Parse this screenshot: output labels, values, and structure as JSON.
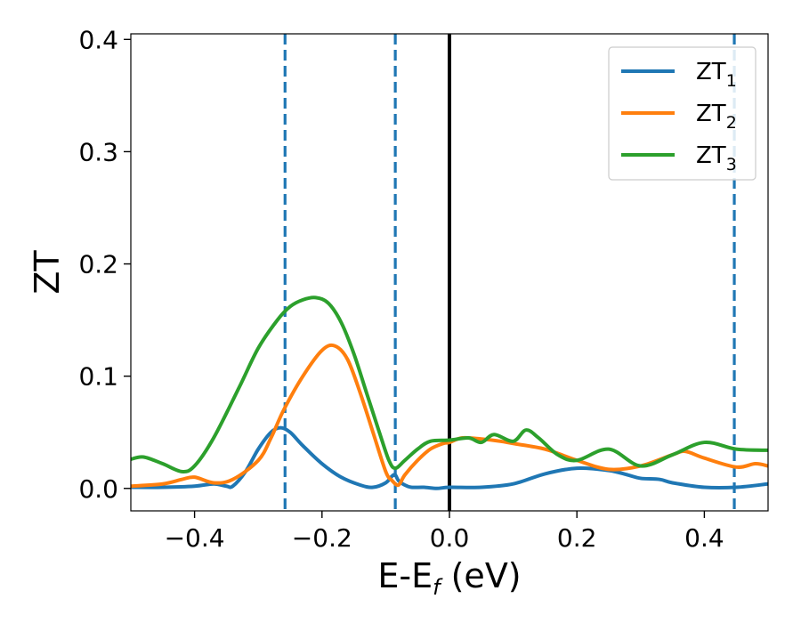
{
  "chart_data": {
    "type": "line",
    "xlabel": {
      "main": "E-E",
      "sub": "f",
      "suffix": " (eV)"
    },
    "ylabel": "ZT",
    "xlim": [
      -0.5,
      0.5
    ],
    "ylim": [
      -0.02,
      0.405
    ],
    "grid": false,
    "legend_position": "top-right",
    "x_ticks": [
      -0.4,
      -0.2,
      0.0,
      0.2,
      0.4
    ],
    "x_tick_labels": [
      "−0.4",
      "−0.2",
      "0.0",
      "0.2",
      "0.4"
    ],
    "y_ticks": [
      0.0,
      0.1,
      0.2,
      0.3,
      0.4
    ],
    "y_tick_labels": [
      "0.0",
      "0.1",
      "0.2",
      "0.3",
      "0.4"
    ],
    "vertical_lines": [
      {
        "x": -0.258,
        "style": "dashed",
        "color": "#1f77b4"
      },
      {
        "x": -0.085,
        "style": "dashed",
        "color": "#1f77b4"
      },
      {
        "x": 0.0,
        "style": "solid",
        "color": "#000000"
      },
      {
        "x": 0.447,
        "style": "dashed",
        "color": "#1f77b4"
      }
    ],
    "series": [
      {
        "name": "ZT",
        "sub": "1",
        "color": "#1f77b4",
        "x": [
          -0.5,
          -0.45,
          -0.4,
          -0.37,
          -0.35,
          -0.34,
          -0.32,
          -0.3,
          -0.28,
          -0.265,
          -0.25,
          -0.23,
          -0.2,
          -0.17,
          -0.14,
          -0.12,
          -0.1,
          -0.09,
          -0.085,
          -0.08,
          -0.07,
          -0.06,
          -0.04,
          -0.02,
          0.0,
          0.05,
          0.1,
          0.15,
          0.2,
          0.25,
          0.28,
          0.3,
          0.33,
          0.35,
          0.4,
          0.45,
          0.5
        ],
        "y": [
          0.001,
          0.001,
          0.002,
          0.004,
          0.002,
          0.002,
          0.015,
          0.035,
          0.05,
          0.054,
          0.05,
          0.038,
          0.022,
          0.01,
          0.003,
          0.001,
          0.005,
          0.011,
          0.012,
          0.007,
          0.003,
          0.001,
          0.001,
          0.0,
          0.001,
          0.001,
          0.004,
          0.013,
          0.018,
          0.016,
          0.012,
          0.009,
          0.008,
          0.005,
          0.001,
          0.001,
          0.004
        ]
      },
      {
        "name": "ZT",
        "sub": "2",
        "color": "#ff7f0e",
        "x": [
          -0.5,
          -0.45,
          -0.42,
          -0.4,
          -0.37,
          -0.34,
          -0.3,
          -0.28,
          -0.26,
          -0.23,
          -0.2,
          -0.18,
          -0.16,
          -0.14,
          -0.12,
          -0.1,
          -0.09,
          -0.08,
          -0.07,
          -0.05,
          -0.03,
          -0.01,
          0.0,
          0.02,
          0.05,
          0.08,
          0.1,
          0.15,
          0.2,
          0.25,
          0.3,
          0.35,
          0.37,
          0.4,
          0.45,
          0.48,
          0.5
        ],
        "y": [
          0.002,
          0.004,
          0.008,
          0.01,
          0.005,
          0.008,
          0.025,
          0.045,
          0.07,
          0.1,
          0.123,
          0.127,
          0.115,
          0.085,
          0.05,
          0.015,
          0.007,
          0.003,
          0.012,
          0.025,
          0.035,
          0.04,
          0.041,
          0.045,
          0.044,
          0.042,
          0.04,
          0.035,
          0.025,
          0.017,
          0.02,
          0.03,
          0.033,
          0.027,
          0.019,
          0.022,
          0.02
        ]
      },
      {
        "name": "ZT",
        "sub": "3",
        "color": "#2ca02c",
        "x": [
          -0.5,
          -0.48,
          -0.45,
          -0.42,
          -0.4,
          -0.37,
          -0.33,
          -0.3,
          -0.27,
          -0.25,
          -0.23,
          -0.21,
          -0.19,
          -0.17,
          -0.15,
          -0.13,
          -0.11,
          -0.095,
          -0.085,
          -0.07,
          -0.05,
          -0.03,
          0.0,
          0.03,
          0.05,
          0.07,
          0.1,
          0.12,
          0.14,
          0.17,
          0.2,
          0.25,
          0.3,
          0.35,
          0.4,
          0.45,
          0.5
        ],
        "y": [
          0.026,
          0.028,
          0.022,
          0.015,
          0.02,
          0.045,
          0.09,
          0.125,
          0.15,
          0.162,
          0.168,
          0.17,
          0.165,
          0.148,
          0.12,
          0.085,
          0.05,
          0.025,
          0.018,
          0.025,
          0.035,
          0.042,
          0.043,
          0.045,
          0.041,
          0.048,
          0.042,
          0.052,
          0.045,
          0.03,
          0.025,
          0.035,
          0.02,
          0.03,
          0.041,
          0.035,
          0.034
        ]
      }
    ]
  }
}
